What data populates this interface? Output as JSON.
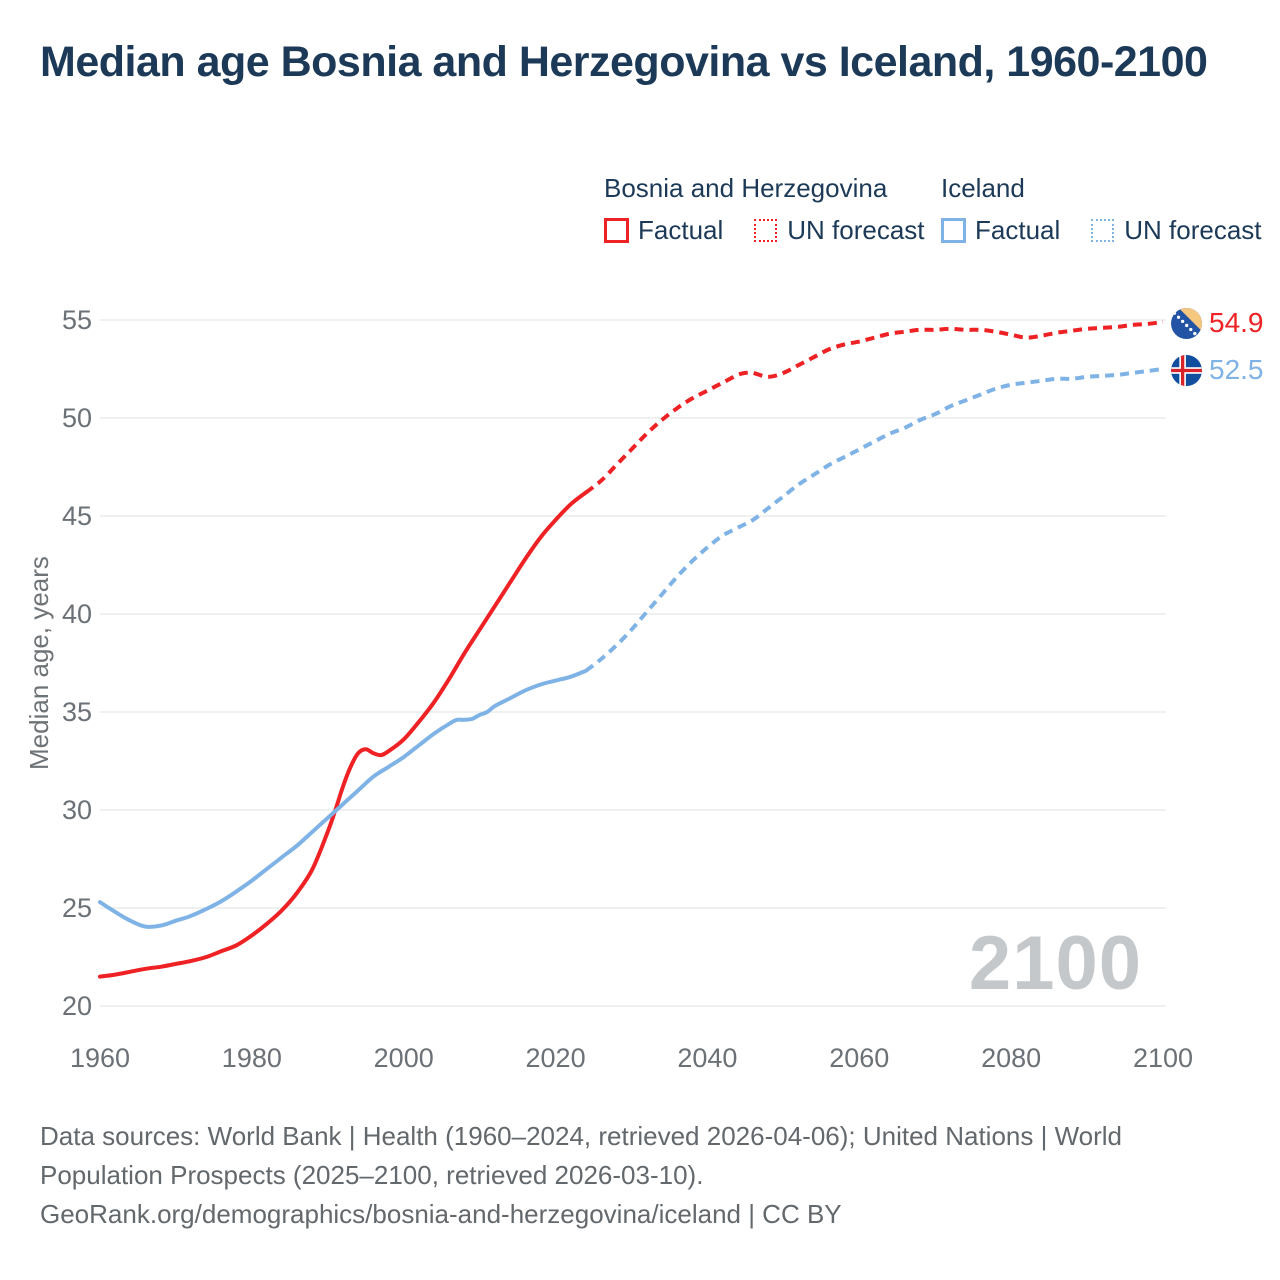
{
  "title": "Median age Bosnia and Herzegovina vs Iceland, 1960-2100",
  "legend": {
    "groups": [
      {
        "name": "Bosnia and Herzegovina",
        "factual_label": "Factual",
        "forecast_label": "UN forecast",
        "color": "#ee2224"
      },
      {
        "name": "Iceland",
        "factual_label": "Factual",
        "forecast_label": "UN forecast",
        "color": "#7fb3e6"
      }
    ]
  },
  "chart_data": {
    "type": "line",
    "title": "Median age Bosnia and Herzegovina vs Iceland, 1960-2100",
    "xlabel": "",
    "ylabel": "Median age, years",
    "xlim": [
      1960,
      2100
    ],
    "ylim": [
      20,
      55
    ],
    "xticks": [
      1960,
      1980,
      2000,
      2020,
      2040,
      2060,
      2080,
      2100
    ],
    "yticks": [
      20,
      25,
      30,
      35,
      40,
      45,
      50,
      55
    ],
    "grid": "horizontal",
    "legend_position": "top",
    "watermark": "2100",
    "series": [
      {
        "name": "Bosnia and Herzegovina — Factual",
        "style": "solid",
        "color": "#ee2224",
        "points": [
          [
            1960,
            21.5
          ],
          [
            1962,
            21.6
          ],
          [
            1964,
            21.75
          ],
          [
            1966,
            21.9
          ],
          [
            1968,
            22.0
          ],
          [
            1970,
            22.15
          ],
          [
            1972,
            22.3
          ],
          [
            1974,
            22.5
          ],
          [
            1976,
            22.8
          ],
          [
            1978,
            23.1
          ],
          [
            1980,
            23.6
          ],
          [
            1982,
            24.2
          ],
          [
            1984,
            24.9
          ],
          [
            1986,
            25.8
          ],
          [
            1988,
            27.0
          ],
          [
            1990,
            28.9
          ],
          [
            1991,
            30.0
          ],
          [
            1992,
            31.2
          ],
          [
            1993,
            32.2
          ],
          [
            1994,
            32.9
          ],
          [
            1995,
            33.1
          ],
          [
            1996,
            32.9
          ],
          [
            1997,
            32.8
          ],
          [
            1998,
            33.0
          ],
          [
            2000,
            33.6
          ],
          [
            2002,
            34.5
          ],
          [
            2004,
            35.5
          ],
          [
            2006,
            36.7
          ],
          [
            2008,
            38.0
          ],
          [
            2010,
            39.2
          ],
          [
            2012,
            40.4
          ],
          [
            2014,
            41.6
          ],
          [
            2016,
            42.8
          ],
          [
            2018,
            43.9
          ],
          [
            2020,
            44.8
          ],
          [
            2022,
            45.6
          ],
          [
            2024,
            46.2
          ]
        ]
      },
      {
        "name": "Bosnia and Herzegovina — UN forecast",
        "style": "dashed",
        "color": "#ee2224",
        "points": [
          [
            2024,
            46.2
          ],
          [
            2026,
            46.8
          ],
          [
            2028,
            47.6
          ],
          [
            2030,
            48.4
          ],
          [
            2032,
            49.2
          ],
          [
            2034,
            49.9
          ],
          [
            2036,
            50.5
          ],
          [
            2038,
            51.0
          ],
          [
            2040,
            51.4
          ],
          [
            2042,
            51.8
          ],
          [
            2044,
            52.2
          ],
          [
            2045,
            52.3
          ],
          [
            2046,
            52.3
          ],
          [
            2048,
            52.1
          ],
          [
            2050,
            52.3
          ],
          [
            2052,
            52.7
          ],
          [
            2054,
            53.1
          ],
          [
            2056,
            53.5
          ],
          [
            2058,
            53.75
          ],
          [
            2060,
            53.9
          ],
          [
            2062,
            54.1
          ],
          [
            2064,
            54.3
          ],
          [
            2066,
            54.4
          ],
          [
            2068,
            54.5
          ],
          [
            2070,
            54.5
          ],
          [
            2072,
            54.55
          ],
          [
            2074,
            54.5
          ],
          [
            2076,
            54.5
          ],
          [
            2078,
            54.4
          ],
          [
            2080,
            54.25
          ],
          [
            2082,
            54.1
          ],
          [
            2084,
            54.2
          ],
          [
            2086,
            54.35
          ],
          [
            2088,
            54.45
          ],
          [
            2090,
            54.55
          ],
          [
            2092,
            54.6
          ],
          [
            2094,
            54.65
          ],
          [
            2096,
            54.75
          ],
          [
            2098,
            54.8
          ],
          [
            2100,
            54.9
          ]
        ]
      },
      {
        "name": "Iceland — Factual",
        "style": "solid",
        "color": "#7fb3e6",
        "points": [
          [
            1960,
            25.3
          ],
          [
            1962,
            24.8
          ],
          [
            1964,
            24.35
          ],
          [
            1966,
            24.05
          ],
          [
            1968,
            24.1
          ],
          [
            1970,
            24.35
          ],
          [
            1972,
            24.6
          ],
          [
            1974,
            24.95
          ],
          [
            1976,
            25.35
          ],
          [
            1978,
            25.85
          ],
          [
            1980,
            26.4
          ],
          [
            1982,
            27.0
          ],
          [
            1984,
            27.6
          ],
          [
            1986,
            28.2
          ],
          [
            1988,
            28.9
          ],
          [
            1990,
            29.6
          ],
          [
            1992,
            30.3
          ],
          [
            1994,
            31.0
          ],
          [
            1996,
            31.7
          ],
          [
            1998,
            32.2
          ],
          [
            2000,
            32.7
          ],
          [
            2002,
            33.3
          ],
          [
            2004,
            33.9
          ],
          [
            2006,
            34.4
          ],
          [
            2007,
            34.6
          ],
          [
            2008,
            34.6
          ],
          [
            2009,
            34.65
          ],
          [
            2010,
            34.85
          ],
          [
            2011,
            35.0
          ],
          [
            2012,
            35.3
          ],
          [
            2014,
            35.7
          ],
          [
            2016,
            36.1
          ],
          [
            2018,
            36.4
          ],
          [
            2020,
            36.6
          ],
          [
            2022,
            36.8
          ],
          [
            2024,
            37.1
          ]
        ]
      },
      {
        "name": "Iceland — UN forecast",
        "style": "dashed",
        "color": "#7fb3e6",
        "points": [
          [
            2024,
            37.1
          ],
          [
            2026,
            37.7
          ],
          [
            2028,
            38.4
          ],
          [
            2030,
            39.2
          ],
          [
            2032,
            40.1
          ],
          [
            2034,
            41.0
          ],
          [
            2036,
            41.9
          ],
          [
            2038,
            42.7
          ],
          [
            2040,
            43.4
          ],
          [
            2042,
            44.0
          ],
          [
            2044,
            44.4
          ],
          [
            2046,
            44.8
          ],
          [
            2048,
            45.4
          ],
          [
            2050,
            46.0
          ],
          [
            2052,
            46.6
          ],
          [
            2054,
            47.1
          ],
          [
            2056,
            47.6
          ],
          [
            2058,
            48.0
          ],
          [
            2060,
            48.4
          ],
          [
            2062,
            48.8
          ],
          [
            2064,
            49.2
          ],
          [
            2066,
            49.5
          ],
          [
            2068,
            49.9
          ],
          [
            2070,
            50.2
          ],
          [
            2072,
            50.6
          ],
          [
            2074,
            50.9
          ],
          [
            2076,
            51.2
          ],
          [
            2078,
            51.5
          ],
          [
            2080,
            51.7
          ],
          [
            2082,
            51.8
          ],
          [
            2084,
            51.9
          ],
          [
            2086,
            52.0
          ],
          [
            2088,
            52.0
          ],
          [
            2090,
            52.1
          ],
          [
            2092,
            52.15
          ],
          [
            2094,
            52.2
          ],
          [
            2096,
            52.3
          ],
          [
            2098,
            52.4
          ],
          [
            2100,
            52.5
          ]
        ]
      }
    ],
    "end_labels": [
      {
        "series": "Bosnia and Herzegovina",
        "value": "54.9",
        "color": "#ee2224",
        "flag": "bosnia-and-herzegovina"
      },
      {
        "series": "Iceland",
        "value": "52.5",
        "color": "#7fb3e6",
        "flag": "iceland"
      }
    ]
  },
  "footer": {
    "line1": "Data sources: World Bank | Health (1960–2024, retrieved 2026-04-06); United Nations | World",
    "line2": "Population Prospects (2025–2100, retrieved 2026-03-10).",
    "line3": "GeoRank.org/demographics/bosnia-and-herzegovina/iceland | CC BY"
  }
}
